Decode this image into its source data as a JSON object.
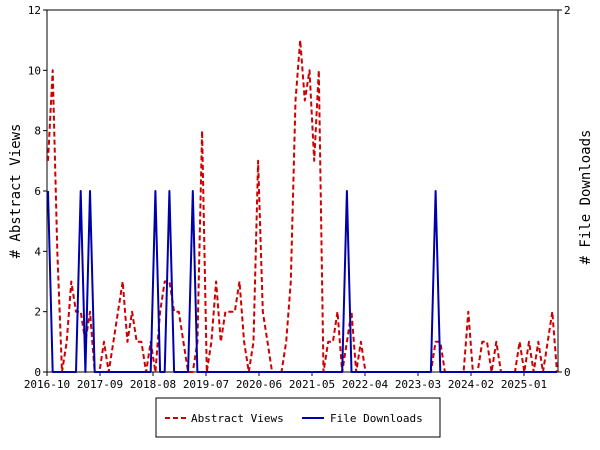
{
  "chart_data": {
    "type": "line",
    "title": "",
    "xlabel": "",
    "ylabel": "# Abstract Views",
    "y2label": "# File Downloads",
    "x_ticks": [
      "2016-10",
      "2017-09",
      "2018-08",
      "2019-07",
      "2020-06",
      "2021-05",
      "2022-04",
      "2023-03",
      "2024-02",
      "2025-01"
    ],
    "ylim": [
      0,
      12
    ],
    "y_ticks": [
      0,
      2,
      4,
      6,
      8,
      10,
      12
    ],
    "y2lim": [
      0,
      2
    ],
    "y2_ticks": [
      0,
      2
    ],
    "n_points": 110,
    "grid": false,
    "legend_position": "bottom-center",
    "series": [
      {
        "name": "Abstract Views",
        "axis": "left",
        "color": "#cc0000",
        "style": "dashed",
        "values": [
          7,
          10,
          4,
          0,
          1,
          3,
          2,
          2,
          1,
          2,
          0,
          0,
          1,
          0,
          1,
          2,
          3,
          1,
          2,
          1,
          1,
          0,
          1,
          0,
          2,
          3,
          3,
          2,
          2,
          1,
          0,
          0,
          1,
          8,
          0,
          1,
          3,
          1,
          2,
          2,
          2,
          3,
          1,
          0,
          1,
          7,
          2,
          1,
          0,
          0,
          0,
          1,
          3,
          9,
          11,
          9,
          10,
          7,
          10,
          0,
          1,
          1,
          2,
          0,
          1,
          2,
          0,
          1,
          0,
          0,
          0,
          0,
          0,
          0,
          0,
          0,
          0,
          0,
          0,
          0,
          0,
          0,
          0,
          1,
          1,
          0,
          0,
          0,
          0,
          0,
          2,
          0,
          0,
          1,
          1,
          0,
          1,
          0,
          0,
          0,
          0,
          1,
          0,
          1,
          0,
          1,
          0,
          1,
          2,
          0
        ]
      },
      {
        "name": "File Downloads",
        "axis": "right",
        "color": "#0000aa",
        "style": "solid",
        "values": [
          1,
          0,
          0,
          0,
          0,
          0,
          0,
          1,
          0,
          1,
          0,
          0,
          0,
          0,
          0,
          0,
          0,
          0,
          0,
          0,
          0,
          0,
          0,
          1,
          0,
          0,
          1,
          0,
          0,
          0,
          0,
          1,
          0,
          0,
          0,
          0,
          0,
          0,
          0,
          0,
          0,
          0,
          0,
          0,
          0,
          0,
          0,
          0,
          0,
          0,
          0,
          0,
          0,
          0,
          0,
          0,
          0,
          0,
          0,
          0,
          0,
          0,
          0,
          0,
          1,
          0,
          0,
          0,
          0,
          0,
          0,
          0,
          0,
          0,
          0,
          0,
          0,
          0,
          0,
          0,
          0,
          0,
          0,
          1,
          0,
          0,
          0,
          0,
          0,
          0,
          0,
          0,
          0,
          0,
          0,
          0,
          0,
          0,
          0,
          0,
          0,
          0,
          0,
          0,
          0,
          0,
          0,
          0,
          0,
          0
        ]
      }
    ]
  }
}
